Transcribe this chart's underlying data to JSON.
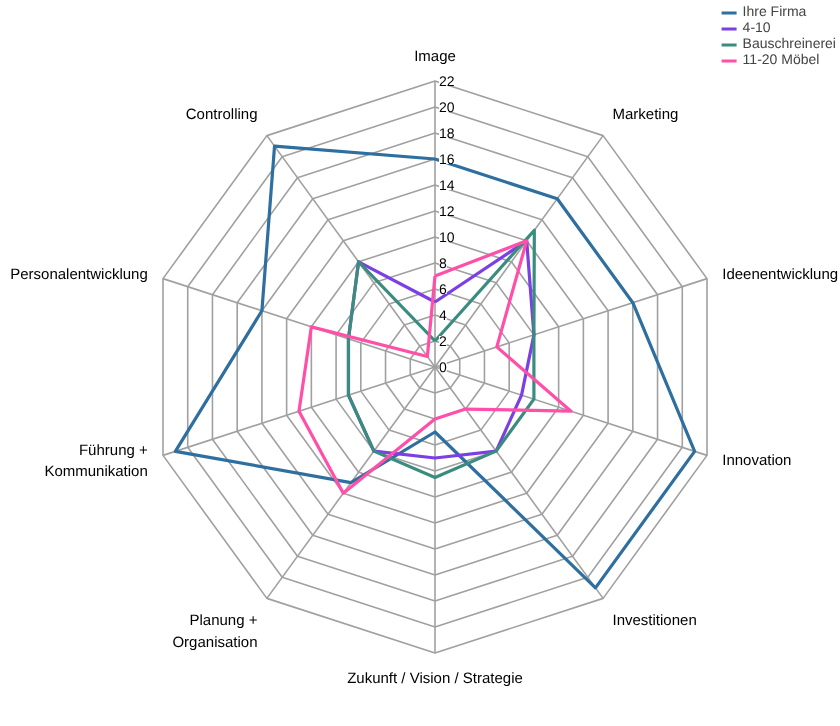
{
  "chart_data": {
    "type": "radar",
    "categories": [
      "Image",
      "Marketing",
      "Ideenentwicklung",
      "Innovation",
      "Investitionen",
      "Zukunft / Vision / Strategie",
      "Planung +\nOrganisation",
      "Führung +\nKommunikation",
      "Personalentwicklung",
      "Controlling"
    ],
    "ylim": [
      0,
      22
    ],
    "yticks": [
      0,
      2,
      4,
      6,
      8,
      10,
      12,
      14,
      16,
      18,
      20,
      22
    ],
    "legend": "top right",
    "grid": true,
    "series": [
      {
        "name": "Ihre Firma",
        "color": "#2f6f9f",
        "values": [
          16,
          16,
          16,
          21,
          21,
          5,
          11,
          21,
          14,
          21
        ]
      },
      {
        "name": "4-10",
        "color": "#7b3fe4",
        "values": [
          5,
          12,
          8,
          7,
          8,
          7,
          8,
          7,
          7,
          10
        ]
      },
      {
        "name": "Bauschreinerei",
        "color": "#3a8c7e",
        "values": [
          2,
          13,
          8,
          8,
          8,
          8.5,
          8,
          7,
          7,
          10
        ]
      },
      {
        "name": "11-20 Möbel",
        "color": "#ff4fa8",
        "values": [
          7,
          12,
          5,
          11,
          4,
          4,
          12,
          11,
          10,
          1
        ]
      }
    ]
  }
}
